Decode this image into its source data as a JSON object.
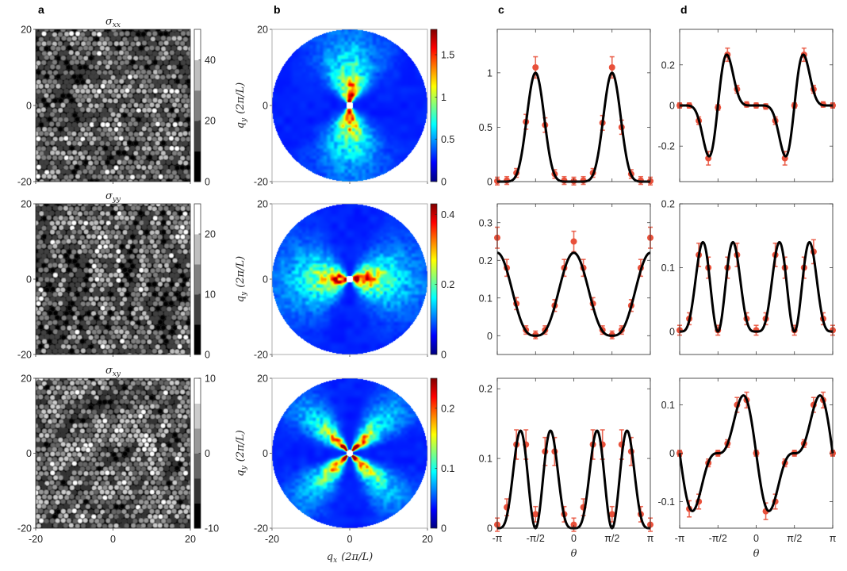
{
  "figure": {
    "panel_labels": [
      "a",
      "b",
      "c",
      "d"
    ],
    "q_label": {
      "symbol": "q",
      "sub_x": "x",
      "sub_y": "y",
      "units": "(2π/L)"
    },
    "theta_label": "θ",
    "colors": {
      "points": "#e8503a",
      "fit": "#000000",
      "axis": "#262626"
    }
  },
  "chart_data": [
    {
      "panel": "a",
      "row": 1,
      "type": "heatmap",
      "title": {
        "symbol": "σ",
        "sub": "xx"
      },
      "pattern": "horizontal-chains",
      "xlim": [
        -20,
        20
      ],
      "ylim": [
        -20,
        20
      ],
      "xticks": [
        -20,
        0,
        20
      ],
      "yticks": [
        -20,
        0,
        20
      ],
      "ytick_labels": [
        "-20",
        "0",
        "20"
      ],
      "colorbar": {
        "colormap": "gray",
        "range": [
          0,
          50
        ],
        "levels": 5,
        "ticks": [
          0,
          20,
          40
        ],
        "tick_labels": [
          "0",
          "20",
          "40"
        ]
      }
    },
    {
      "panel": "b",
      "row": 1,
      "type": "heatmap",
      "pattern": "vertical",
      "xlim": [
        -20,
        20
      ],
      "ylim": [
        -20,
        20
      ],
      "xticks": [
        -20,
        0,
        20
      ],
      "yticks": [
        -20,
        0,
        20
      ],
      "ytick_labels": [
        "-20",
        "0",
        "20"
      ],
      "colorbar": {
        "colormap": "jet",
        "range": [
          0,
          1.8
        ],
        "ticks": [
          0,
          0.5,
          1,
          1.5
        ],
        "tick_labels": [
          "0",
          "0.5",
          "1",
          "1.5"
        ]
      }
    },
    {
      "panel": "c",
      "row": 1,
      "type": "line",
      "fit": "sin8",
      "coef": 1.0,
      "ylim": [
        0,
        1.4
      ],
      "yticks": [
        0,
        0.5,
        1
      ],
      "ytick_labels": [
        "0",
        "0.5",
        "1"
      ],
      "err": 0.07,
      "theta_over_pi": [
        -1,
        -0.875,
        -0.75,
        -0.625,
        -0.5,
        -0.375,
        -0.25,
        -0.125,
        0,
        0.125,
        0.25,
        0.375,
        0.5,
        0.625,
        0.75,
        0.875,
        1
      ],
      "values": [
        0.005,
        0.01,
        0.08,
        0.55,
        1.05,
        0.52,
        0.07,
        0.01,
        0.005,
        0.01,
        0.08,
        0.54,
        1.05,
        0.5,
        0.07,
        0.01,
        0.005
      ]
    },
    {
      "panel": "d",
      "row": 1,
      "type": "line",
      "fit": "dsin8",
      "coef": 1.13,
      "ylim": [
        -0.375,
        0.375
      ],
      "yticks": [
        -0.2,
        0,
        0.2
      ],
      "ytick_labels": [
        "-0.2",
        "0",
        "0.2"
      ],
      "err": 0.025,
      "theta_over_pi": [
        -1,
        -0.875,
        -0.75,
        -0.625,
        -0.5,
        -0.375,
        -0.25,
        -0.125,
        0,
        0.125,
        0.25,
        0.375,
        0.5,
        0.625,
        0.75,
        0.875,
        1
      ],
      "values": [
        0,
        0,
        -0.075,
        -0.26,
        -0.01,
        0.25,
        0.08,
        0.005,
        0,
        -0.005,
        -0.075,
        -0.26,
        0,
        0.25,
        0.08,
        0.005,
        0
      ]
    },
    {
      "panel": "a",
      "row": 2,
      "type": "heatmap",
      "title": {
        "symbol": "σ",
        "sub": "yy"
      },
      "pattern": "vertical-chains",
      "xlim": [
        -20,
        20
      ],
      "ylim": [
        -20,
        20
      ],
      "xticks": [
        -20,
        0,
        20
      ],
      "yticks": [
        -20,
        0,
        20
      ],
      "ytick_labels": [
        "-20",
        "0",
        "20"
      ],
      "colorbar": {
        "colormap": "gray",
        "range": [
          0,
          25
        ],
        "levels": 5,
        "ticks": [
          0,
          10,
          20
        ],
        "tick_labels": [
          "0",
          "10",
          "20"
        ]
      }
    },
    {
      "panel": "b",
      "row": 2,
      "type": "heatmap",
      "pattern": "horizontal",
      "xlim": [
        -20,
        20
      ],
      "ylim": [
        -20,
        20
      ],
      "xticks": [
        -20,
        0,
        20
      ],
      "yticks": [
        -20,
        0,
        20
      ],
      "ytick_labels": [
        "-20",
        "0",
        "20"
      ],
      "colorbar": {
        "colormap": "jet",
        "range": [
          0,
          0.43
        ],
        "ticks": [
          0,
          0.2,
          0.4
        ],
        "tick_labels": [
          "0",
          "0.2",
          "0.4"
        ]
      }
    },
    {
      "panel": "c",
      "row": 2,
      "type": "line",
      "fit": "abscos3",
      "coef": 0.22,
      "ylim": [
        -0.05,
        0.35
      ],
      "yticks": [
        0,
        0.1,
        0.2,
        0.3
      ],
      "ytick_labels": [
        "0",
        "0.1",
        "0.2",
        "0.3"
      ],
      "err": 0.02,
      "theta_over_pi": [
        -1,
        -0.875,
        -0.75,
        -0.625,
        -0.5,
        -0.375,
        -0.25,
        -0.125,
        0,
        0.125,
        0.25,
        0.375,
        0.5,
        0.625,
        0.75,
        0.875,
        1
      ],
      "values": [
        0.26,
        0.18,
        0.085,
        0.015,
        0.002,
        0.015,
        0.08,
        0.18,
        0.25,
        0.18,
        0.085,
        0.015,
        0.002,
        0.015,
        0.08,
        0.18,
        0.26
      ]
    },
    {
      "panel": "d",
      "row": 2,
      "type": "line",
      "fit": "s4c2",
      "coef": 0.944,
      "ylim": [
        -0.036,
        0.2
      ],
      "yticks": [
        0,
        0.1,
        0.2
      ],
      "ytick_labels": [
        "0",
        "0.1",
        "0.2"
      ],
      "err": 0.015,
      "theta_over_pi": [
        -1,
        -0.875,
        -0.75,
        -0.625,
        -0.5,
        -0.375,
        -0.25,
        -0.125,
        0,
        0.125,
        0.25,
        0.375,
        0.5,
        0.625,
        0.75,
        0.875,
        1
      ],
      "values": [
        0.002,
        0.02,
        0.12,
        0.1,
        0.002,
        0.1,
        0.12,
        0.02,
        0.002,
        0.02,
        0.12,
        0.1,
        0.002,
        0.1,
        0.125,
        0.02,
        0.002
      ]
    },
    {
      "panel": "a",
      "row": 3,
      "type": "heatmap",
      "title": {
        "symbol": "σ",
        "sub": "xy"
      },
      "pattern": "random",
      "xlim": [
        -20,
        20
      ],
      "ylim": [
        -20,
        20
      ],
      "xticks": [
        -20,
        0,
        20
      ],
      "yticks": [
        -20,
        0,
        20
      ],
      "xtick_labels": [
        "-20",
        "0",
        "20"
      ],
      "ytick_labels": [
        "-20",
        "0",
        "20"
      ],
      "colorbar": {
        "colormap": "gray",
        "range": [
          -10,
          10
        ],
        "levels": 6,
        "ticks": [
          -10,
          0,
          10
        ],
        "tick_labels": [
          "-10",
          "0",
          "10"
        ]
      }
    },
    {
      "panel": "b",
      "row": 3,
      "type": "heatmap",
      "pattern": "diagonal",
      "xlim": [
        -20,
        20
      ],
      "ylim": [
        -20,
        20
      ],
      "xticks": [
        -20,
        0,
        20
      ],
      "yticks": [
        -20,
        0,
        20
      ],
      "xtick_labels": [
        "-20",
        "0",
        "20"
      ],
      "ytick_labels": [
        "-20",
        "0",
        "20"
      ],
      "colorbar": {
        "colormap": "jet",
        "range": [
          0,
          0.25
        ],
        "ticks": [
          0,
          0.1,
          0.2
        ],
        "tick_labels": [
          "0",
          "0.1",
          "0.2"
        ]
      }
    },
    {
      "panel": "c",
      "row": 3,
      "type": "line",
      "fit": "s4c2",
      "coef": 0.944,
      "ylim": [
        0,
        0.215
      ],
      "yticks": [
        0,
        0.1,
        0.2
      ],
      "ytick_labels": [
        "0",
        "0.1",
        "0.2"
      ],
      "err": 0.018,
      "xtick_labels": [
        "-π",
        "-π/2",
        "0",
        "π/2",
        "π"
      ],
      "theta_over_pi": [
        -1,
        -0.875,
        -0.75,
        -0.625,
        -0.5,
        -0.375,
        -0.25,
        -0.125,
        0,
        0.125,
        0.25,
        0.375,
        0.5,
        0.625,
        0.75,
        0.875,
        1
      ],
      "values": [
        0.005,
        0.03,
        0.12,
        0.12,
        0.02,
        0.11,
        0.11,
        0.02,
        0.005,
        0.03,
        0.12,
        0.12,
        0.02,
        0.12,
        0.11,
        0.02,
        0.005
      ]
    },
    {
      "panel": "d",
      "row": 3,
      "type": "line",
      "fit": "d3",
      "coef": 0.092,
      "ylim": [
        -0.155,
        0.155
      ],
      "yticks": [
        -0.1,
        0,
        0.1
      ],
      "ytick_labels": [
        "-0.1",
        "0",
        "0.1"
      ],
      "err": 0.012,
      "xtick_labels": [
        "-π",
        "-π/2",
        "0",
        "π/2",
        "π"
      ],
      "theta_over_pi": [
        -1,
        -0.875,
        -0.75,
        -0.625,
        -0.5,
        -0.375,
        -0.25,
        -0.125,
        0,
        0.125,
        0.25,
        0.375,
        0.5,
        0.625,
        0.75,
        0.875,
        1
      ],
      "values": [
        0,
        -0.115,
        -0.1,
        -0.02,
        0,
        0.02,
        0.1,
        0.11,
        0,
        -0.12,
        -0.1,
        -0.02,
        0,
        0.02,
        0.1,
        0.11,
        0
      ]
    }
  ]
}
